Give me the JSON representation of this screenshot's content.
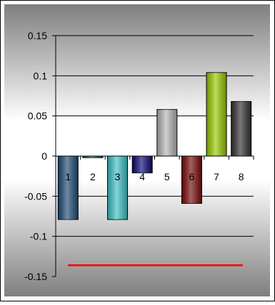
{
  "chart_data": {
    "type": "bar",
    "title": "",
    "xlabel": "",
    "ylabel": "",
    "ylim": [
      -0.15,
      0.15
    ],
    "yticks": [
      0.15,
      0.1,
      0.05,
      0,
      -0.05,
      -0.1,
      -0.15
    ],
    "ytick_labels": [
      "0.15",
      "0.1",
      "0.05",
      "0",
      "-0.05",
      "-0.1",
      "-0.15"
    ],
    "grid": true,
    "legend": "none",
    "categories": [
      "1",
      "2",
      "3",
      "4",
      "5",
      "6",
      "7",
      "8"
    ],
    "values": [
      -0.079,
      -0.002,
      -0.079,
      -0.021,
      0.058,
      -0.059,
      0.104,
      0.068
    ],
    "bar_colors": [
      "#1f4e79",
      "#1b6a6a",
      "#40c4c8",
      "#0b0b78",
      "#b8b8b8",
      "#7a0a0a",
      "#99cc00",
      "#333333"
    ],
    "reference_line": {
      "value": -0.136,
      "color": "#ff0000"
    },
    "colors": {
      "outer_border": "#000000",
      "frame_fill": "#7f7f7f",
      "gridline": "#000000"
    }
  }
}
